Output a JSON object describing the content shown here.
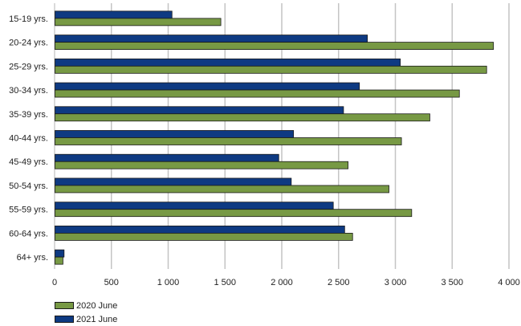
{
  "chart_data": {
    "type": "bar",
    "orientation": "horizontal",
    "categories": [
      "15-19 yrs.",
      "20-24 yrs.",
      "25-29 yrs.",
      "30-34 yrs.",
      "35-39 yrs.",
      "40-44 yrs.",
      "45-49 yrs.",
      "50-54 yrs.",
      "55-59 yrs.",
      "60-64 yrs.",
      "64+ yrs."
    ],
    "series": [
      {
        "name": "2021 June",
        "color": "#0e3a82",
        "values": [
          1030,
          2750,
          3040,
          2680,
          2540,
          2100,
          1970,
          2080,
          2450,
          2550,
          80
        ]
      },
      {
        "name": "2020 June",
        "color": "#779944",
        "values": [
          1460,
          3860,
          3800,
          3560,
          3300,
          3050,
          2580,
          2940,
          3140,
          2620,
          70
        ]
      }
    ],
    "xticks": [
      "0",
      "500",
      "1 000",
      "1 500",
      "2 000",
      "2 500",
      "3 000",
      "3 500",
      "4 000"
    ],
    "xlim": [
      0,
      4000
    ],
    "title": "",
    "xlabel": "",
    "ylabel": "",
    "grid": "vertical",
    "legend": "bottom-left"
  }
}
